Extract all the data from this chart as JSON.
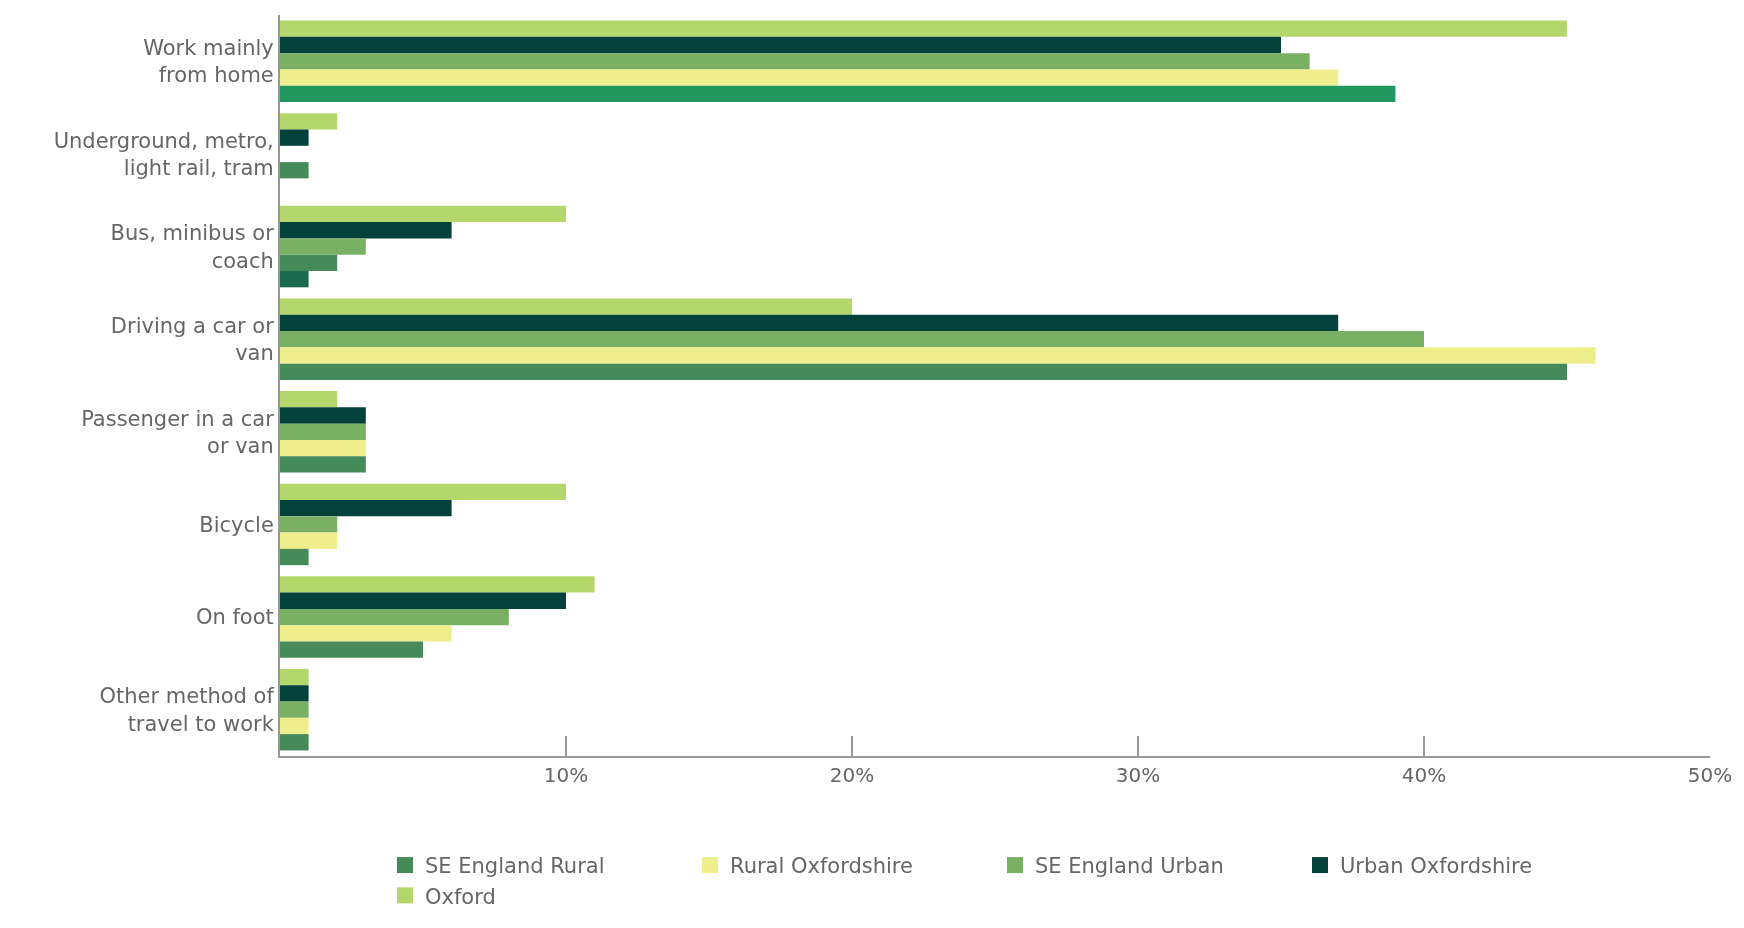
{
  "chart_data": {
    "type": "bar",
    "orientation": "horizontal",
    "categories": [
      "Work mainly\nfrom home",
      "Underground, metro,\nlight rail, tram",
      "Bus, minibus or\ncoach",
      "Driving a car or\nvan",
      "Passenger in a car\nor van",
      "Bicycle",
      "On foot",
      "Other method of\ntravel to work"
    ],
    "series": [
      {
        "name": "SE England Rural",
        "color": "#468a5a",
        "colors": [
          "#21965f",
          null,
          "#1b6a4f",
          "#468a5a",
          "#468a5a",
          "#468a5a",
          "#468a5a",
          "#468a5a"
        ],
        "values": [
          39,
          null,
          1,
          45,
          3,
          1,
          5,
          1
        ]
      },
      {
        "name": "Rural Oxfordshire",
        "color": "#eeee8d",
        "colors": [
          "#eeee8d",
          "#468a5a",
          "#468a5a",
          "#eeee8d",
          "#eeee8d",
          "#eeee8d",
          "#eeee8d",
          "#eeee8d"
        ],
        "values": [
          37,
          1,
          2,
          46,
          3,
          2,
          6,
          1
        ]
      },
      {
        "name": "SE England Urban",
        "color": "#7ab063",
        "values": [
          36,
          null,
          3,
          40,
          3,
          2,
          8,
          1
        ]
      },
      {
        "name": "Urban Oxfordshire",
        "color": "#03413a",
        "values": [
          35,
          1,
          6,
          37,
          3,
          6,
          10,
          1
        ]
      },
      {
        "name": "Oxford",
        "color": "#b3d76b",
        "values": [
          45,
          2,
          10,
          20,
          2,
          10,
          11,
          1
        ]
      }
    ],
    "xlim": [
      0,
      50
    ],
    "xticks": [
      {
        "value": 10,
        "label": "10%"
      },
      {
        "value": 20,
        "label": "20%"
      },
      {
        "value": 30,
        "label": "30%"
      },
      {
        "value": 40,
        "label": "40%"
      },
      {
        "value": 50,
        "label": "50%"
      }
    ],
    "legend": "bottom"
  }
}
